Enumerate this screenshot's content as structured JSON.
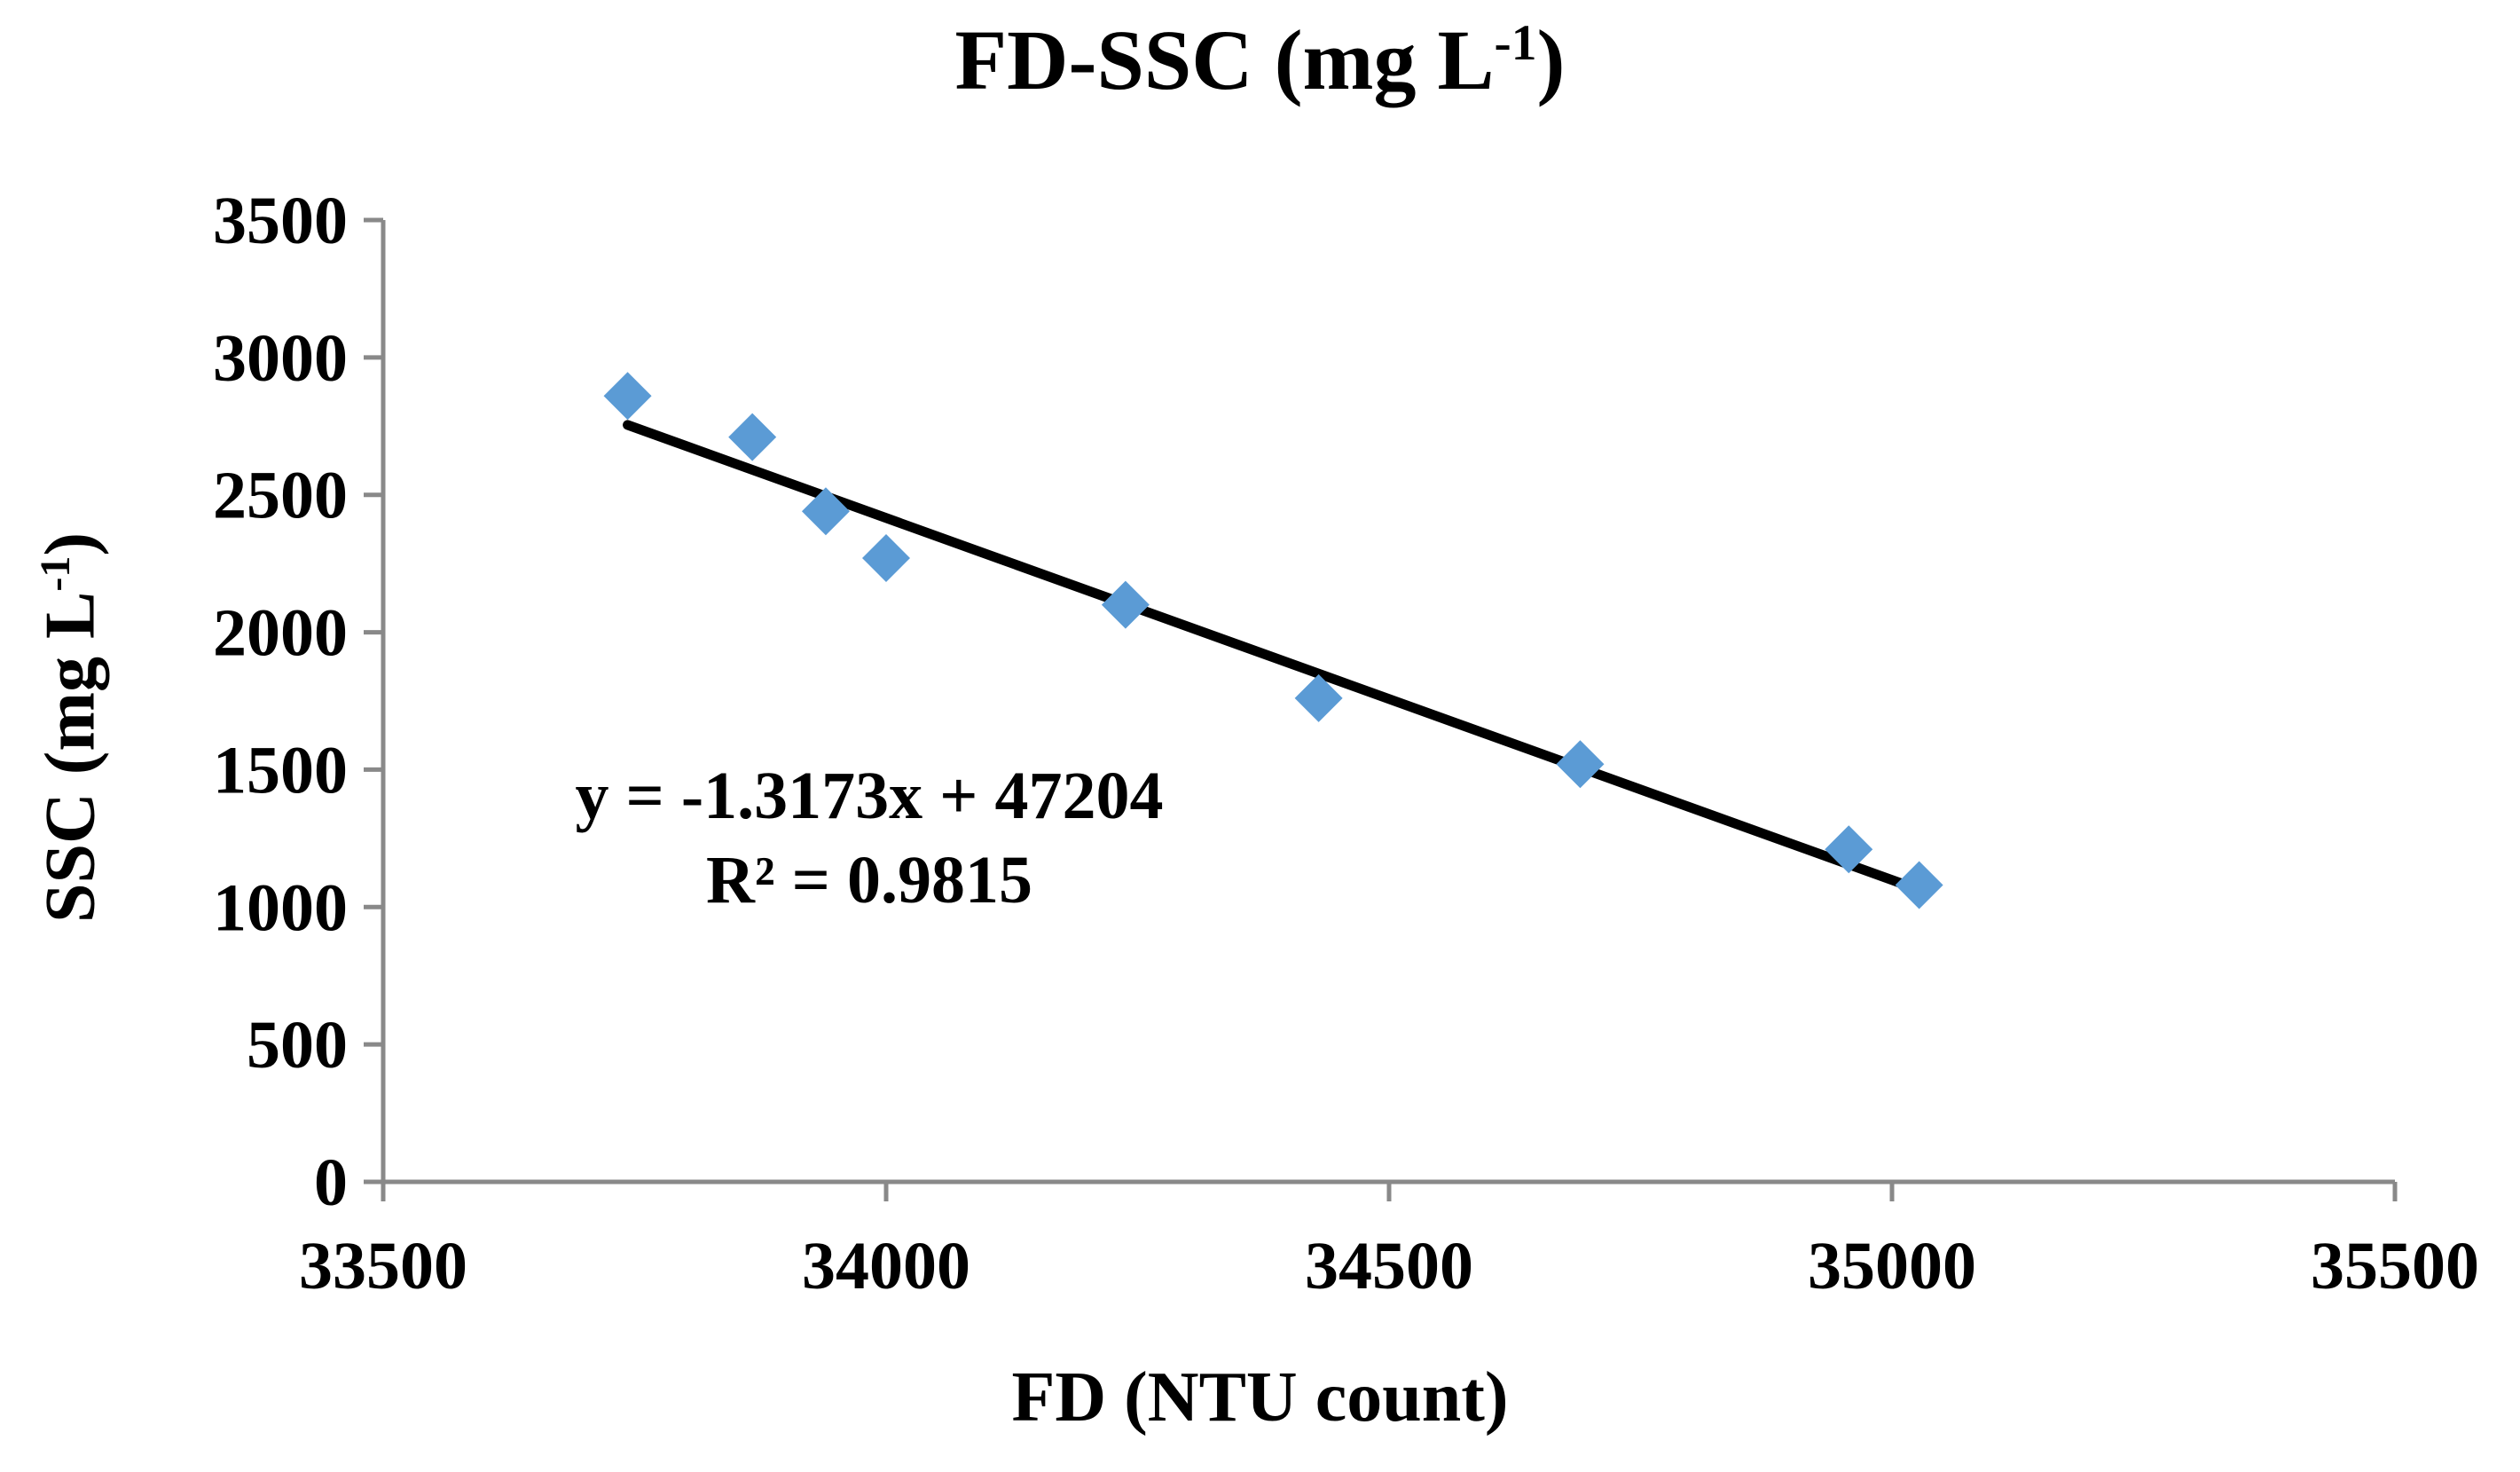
{
  "chart_data": {
    "type": "scatter",
    "title": "FD-SSC (mg L",
    "title_sup": "-1",
    "title_close": ")",
    "xlabel": "FD (NTU count)",
    "ylabel": "SSC (mg L",
    "ylabel_sup": "-1",
    "ylabel_close": ")",
    "xlim": [
      33500,
      35500
    ],
    "ylim": [
      0,
      3500
    ],
    "xticks": [
      33500,
      34000,
      34500,
      35000,
      35500
    ],
    "yticks": [
      0,
      500,
      1000,
      1500,
      2000,
      2500,
      3000,
      3500
    ],
    "series": [
      {
        "name": "FD-SSC",
        "color": "#5B9BD5",
        "marker": "diamond",
        "x": [
          33743,
          33867,
          33940,
          34000,
          34238,
          34430,
          34690,
          34957,
          35027
        ],
        "y": [
          2860,
          2710,
          2440,
          2270,
          2100,
          1760,
          1520,
          1210,
          1080
        ]
      }
    ],
    "trendline": {
      "type": "linear",
      "slope": -1.3173,
      "intercept": 47204,
      "x_range": [
        33743,
        35027
      ],
      "color": "#000000",
      "equation": "y = -1.3173x + 47204",
      "r_squared": "R² = 0.9815"
    },
    "grid": false,
    "legend": "none"
  }
}
